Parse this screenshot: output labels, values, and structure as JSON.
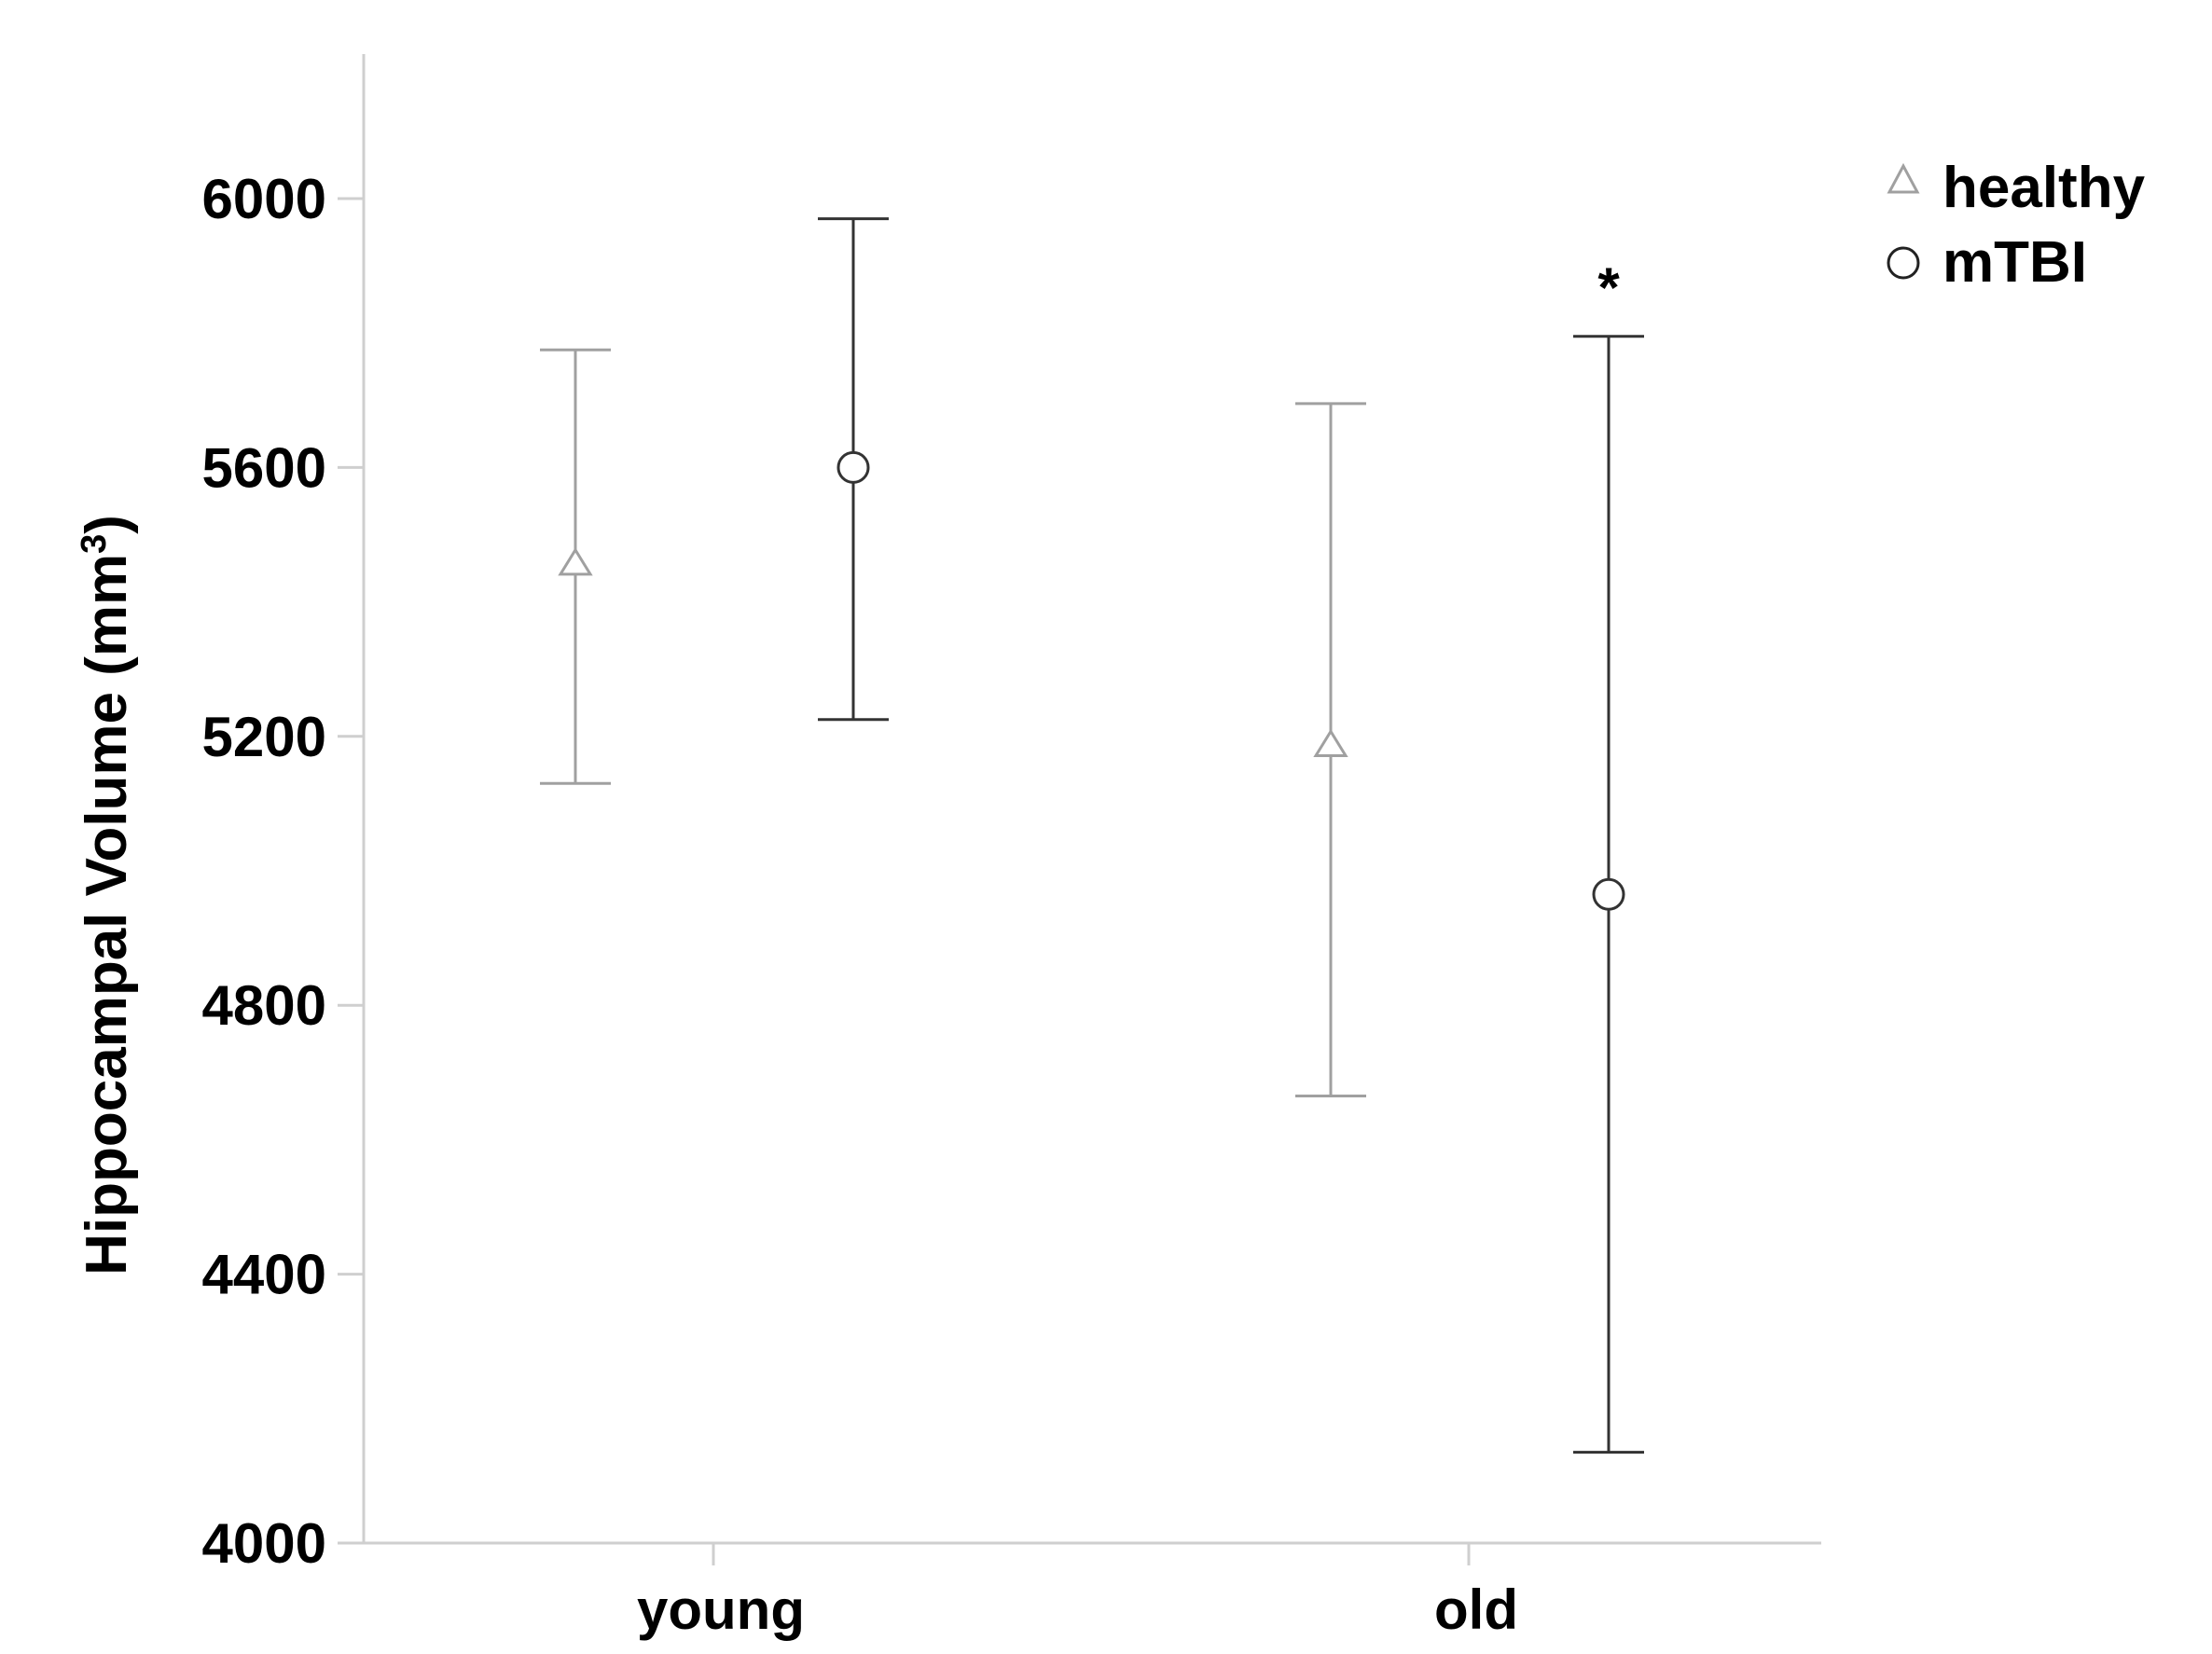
{
  "chart_data": {
    "type": "scatter",
    "subtype": "error-bar",
    "title": "",
    "xlabel": "",
    "ylabel": "Hippocampal Volume (mm",
    "ylabel_superscript": "3",
    "ylabel_suffix": ")",
    "categories": [
      "young",
      "old"
    ],
    "ylim": [
      4000,
      6200
    ],
    "yticks": [
      4000,
      4400,
      4800,
      5200,
      5600,
      6000
    ],
    "ytick_labels": [
      "4000",
      "4400",
      "4800",
      "5200",
      "5600",
      "6000"
    ],
    "grid": false,
    "legend_position": "top-right",
    "series": [
      {
        "name": "healthy",
        "marker": "triangle",
        "color": "#a0a0a0",
        "points": [
          {
            "category": "young",
            "mean": 5455,
            "lower": 5130,
            "upper": 5775
          },
          {
            "category": "old",
            "mean": 5185,
            "lower": 4665,
            "upper": 5695
          }
        ]
      },
      {
        "name": "mTBI",
        "marker": "circle",
        "color": "#333333",
        "points": [
          {
            "category": "young",
            "mean": 5600,
            "lower": 5225,
            "upper": 5970
          },
          {
            "category": "old",
            "mean": 4965,
            "lower": 4135,
            "upper": 5795
          }
        ]
      }
    ],
    "annotations": [
      {
        "text": "*",
        "category": "old",
        "series": "mTBI",
        "anchor": "above-upper"
      }
    ]
  }
}
